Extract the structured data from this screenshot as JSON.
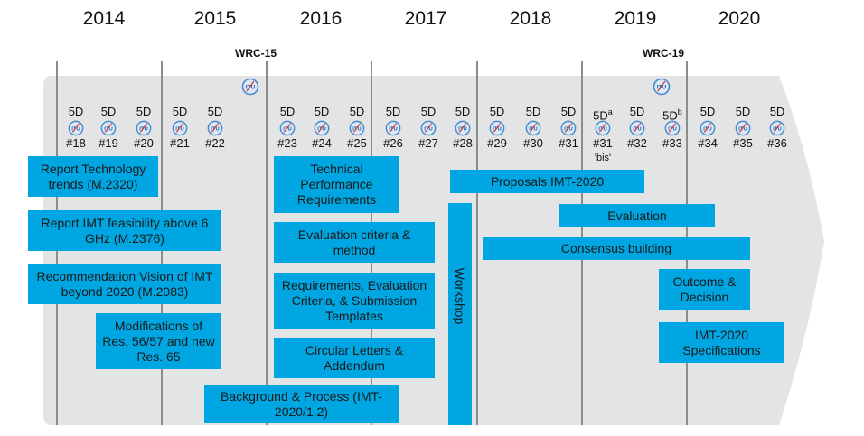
{
  "years": [
    "2014",
    "2015",
    "2016",
    "2017",
    "2018",
    "2019",
    "2020"
  ],
  "wrc": [
    "WRC-15",
    "WRC-19"
  ],
  "meetings": [
    {
      "label": "5D",
      "number": "#18"
    },
    {
      "label": "5D",
      "number": "#19"
    },
    {
      "label": "5D",
      "number": "#20"
    },
    {
      "label": "5D",
      "number": "#21"
    },
    {
      "label": "5D",
      "number": "#22"
    },
    {
      "label": "5D",
      "number": "#23"
    },
    {
      "label": "5D",
      "number": "#24"
    },
    {
      "label": "5D",
      "number": "#25"
    },
    {
      "label": "5D",
      "number": "#26"
    },
    {
      "label": "5D",
      "number": "#27"
    },
    {
      "label": "5D",
      "number": "#28"
    },
    {
      "label": "5D",
      "number": "#29"
    },
    {
      "label": "5D",
      "number": "#30"
    },
    {
      "label": "5D",
      "number": "#31"
    },
    {
      "label": "5D",
      "sup": "a",
      "number": "#31",
      "note": "'bis'"
    },
    {
      "label": "5D",
      "number": "#32"
    },
    {
      "label": "5D",
      "sup": "b",
      "number": "#33"
    },
    {
      "label": "5D",
      "number": "#34"
    },
    {
      "label": "5D",
      "number": "#35"
    },
    {
      "label": "5D",
      "number": "#36"
    }
  ],
  "logo_text": "ITU",
  "boxes": {
    "report_tech_trends": "Report Technology trends (M.2320)",
    "report_feasibility": "Report IMT feasibility above 6 GHz (M.2376)",
    "rec_vision": "Recommendation Vision of IMT beyond 2020 (M.2083)",
    "modifications": "Modifications of Res. 56/57 and new Res. 65",
    "tech_perf": "Technical Performance Requirements",
    "eval_criteria": "Evaluation criteria & method",
    "requirements": "Requirements, Evaluation Criteria, & Submission Templates",
    "circular": "Circular Letters & Addendum",
    "background": "Background & Process (IMT-2020/1,2)",
    "workshop": "Workshop",
    "proposals": "Proposals IMT-2020",
    "evaluation": "Evaluation",
    "consensus": "Consensus building",
    "outcome": "Outcome & Decision",
    "specifications": "IMT-2020 Specifications"
  },
  "colors": {
    "box": "#00a6e2",
    "band": "#e3e4e6",
    "divider": "#8c8c8c",
    "logo_ring": "#4a8ac9",
    "logo_arrow": "#d9302c"
  }
}
